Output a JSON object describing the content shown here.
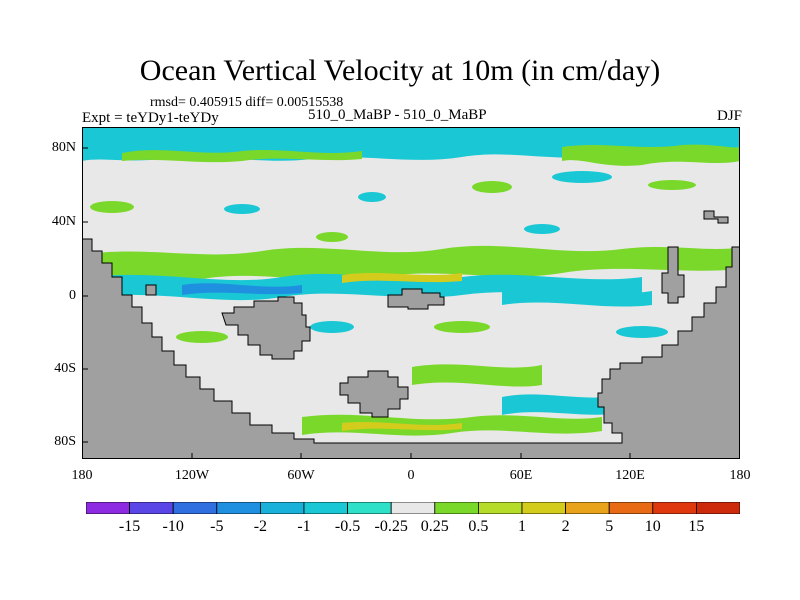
{
  "plot": {
    "title": "Ocean Vertical Velocity at 10m (in cm/day)",
    "stats": "rmsd= 0.405915 diff= 0.00515538",
    "expt": "Expt = teYDy1-teYDy",
    "case": "510_0_MaBP - 510_0_MaBP",
    "season": "DJF"
  },
  "axes": {
    "lat_ticks": [
      "80N",
      "40N",
      "0",
      "40S",
      "80S"
    ],
    "lon_ticks": [
      "180",
      "120W",
      "60W",
      "0",
      "60E",
      "120E",
      "180"
    ]
  },
  "colorbar": {
    "labels": [
      "-15",
      "-10",
      "-5",
      "-2",
      "-1",
      "-0.5",
      "-0.25",
      "0.25",
      "0.5",
      "1",
      "2",
      "5",
      "10",
      "15"
    ],
    "colors": [
      "#8d2be2",
      "#5a45e6",
      "#2f6fe0",
      "#1f8fe0",
      "#19b0da",
      "#19c8d4",
      "#2ee0c8",
      "#e8e8e8",
      "#7ad82a",
      "#b6dc2a",
      "#d4cc1c",
      "#e8a31a",
      "#e86a14",
      "#e0380e",
      "#cc2a0a"
    ]
  },
  "map_colors": {
    "land": "#a0a0a0",
    "neutral": "#e8e8e8",
    "cyan": "#19c8d4",
    "blue": "#1f8fe0",
    "green": "#7ad82a",
    "yellow": "#d4cc1c"
  }
}
